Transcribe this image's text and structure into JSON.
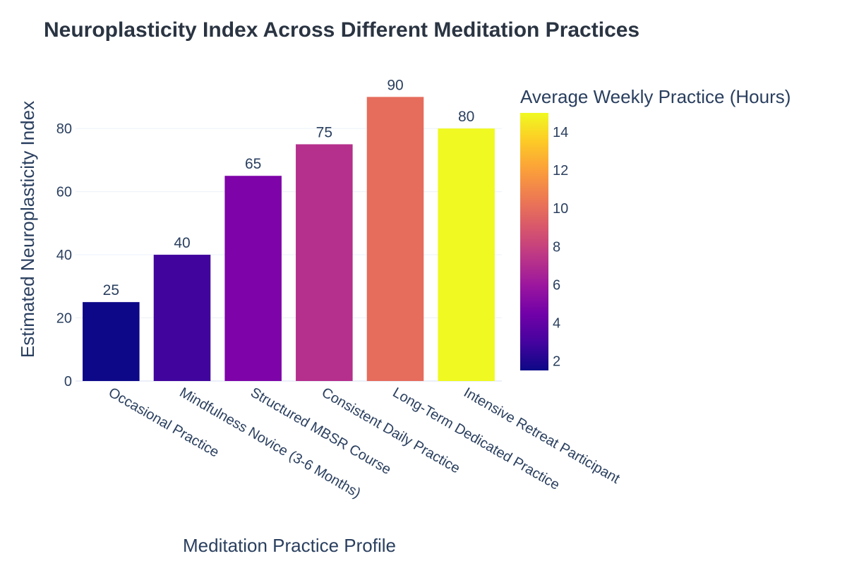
{
  "chart_data": {
    "type": "bar",
    "title": "Neuroplasticity Index Across Different Meditation Practices",
    "xlabel": "Meditation Practice Profile",
    "ylabel": "Estimated Neuroplasticity Index",
    "categories": [
      "Occasional Practice",
      "Mindfulness Novice (3-6 Months)",
      "Structured MBSR Course",
      "Consistent Daily Practice",
      "Long-Term Dedicated Practice",
      "Intensive Retreat Participant"
    ],
    "values": [
      25,
      40,
      65,
      75,
      90,
      80
    ],
    "color_values": [
      1.5,
      3.5,
      5,
      7,
      10,
      15
    ],
    "bar_colors": [
      "#0d0887",
      "#41049d",
      "#7e03a8",
      "#b52f8c",
      "#e66c5c",
      "#f0f921"
    ],
    "value_labels": [
      "25",
      "40",
      "65",
      "75",
      "90",
      "80"
    ],
    "ylim": [
      0,
      95
    ],
    "yticks": [
      0,
      20,
      40,
      60,
      80
    ],
    "grid": true,
    "colorbar": {
      "title": "Average Weekly Practice (Hours)",
      "range": [
        1.5,
        15
      ],
      "ticks": [
        2,
        4,
        6,
        8,
        10,
        12,
        14
      ],
      "colorscale": [
        "#0d0887",
        "#46039f",
        "#7201a8",
        "#9c179e",
        "#bd3786",
        "#d8576b",
        "#ed7953",
        "#fb9f3a",
        "#fdca26",
        "#f0f921"
      ],
      "placement": "right"
    }
  }
}
